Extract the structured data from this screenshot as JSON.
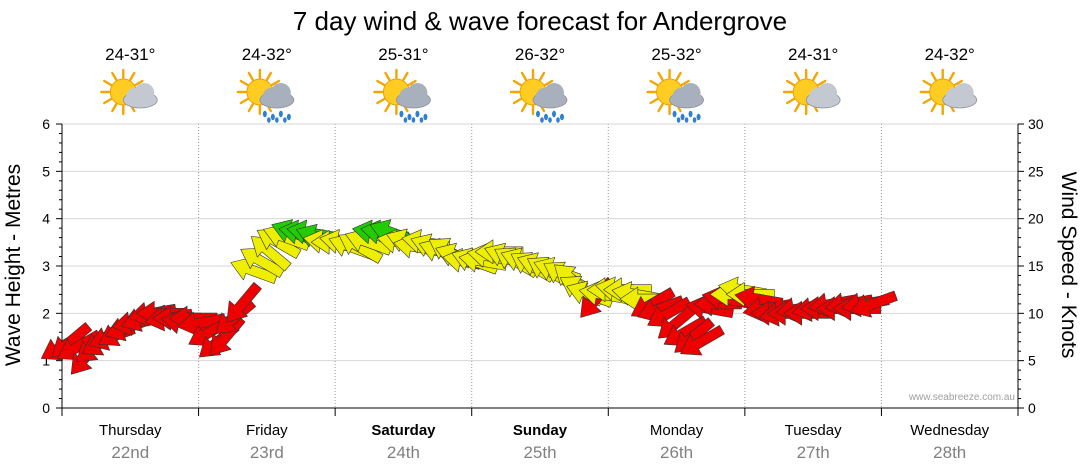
{
  "chart_data": {
    "type": "scatter",
    "title": "7 day wind & wave forecast for Andergrove",
    "ylabel_left": "Wave Height - Metres",
    "ylabel_right": "Wind Speed - Knots",
    "ylim_left": [
      0,
      6
    ],
    "ylim_right": [
      0,
      30
    ],
    "yticks_left": [
      "0",
      "1",
      "2",
      "3",
      "4",
      "5",
      "6"
    ],
    "yticks_right": [
      "0",
      "5",
      "10",
      "15",
      "20",
      "25",
      "30"
    ],
    "credit": "www.seabreeze.com.au",
    "days": [
      {
        "name": "Thursday",
        "date": "22nd",
        "temp": "24-31°",
        "icon": "sun-cloud-icon",
        "bold": false
      },
      {
        "name": "Friday",
        "date": "23rd",
        "temp": "24-32°",
        "icon": "sun-cloud-rain-icon",
        "bold": false
      },
      {
        "name": "Saturday",
        "date": "24th",
        "temp": "25-31°",
        "icon": "sun-cloud-rain-icon",
        "bold": true
      },
      {
        "name": "Sunday",
        "date": "25th",
        "temp": "26-32°",
        "icon": "sun-cloud-rain-icon",
        "bold": true
      },
      {
        "name": "Monday",
        "date": "26th",
        "temp": "25-32°",
        "icon": "sun-cloud-rain-icon",
        "bold": false
      },
      {
        "name": "Tuesday",
        "date": "27th",
        "temp": "24-31°",
        "icon": "sun-cloud-icon",
        "bold": false
      },
      {
        "name": "Wednesday",
        "date": "28th",
        "temp": "24-32°",
        "icon": "sun-cloud-icon",
        "bold": false
      }
    ],
    "colors": {
      "red": "#ee0000",
      "yellow": "#eeee00",
      "green": "#22cc00"
    },
    "wind_series": [
      {
        "t": 0.0,
        "kts": 6.5,
        "dir": 150,
        "c": "red"
      },
      {
        "t": 0.06,
        "kts": 7.0,
        "dir": 140,
        "c": "red"
      },
      {
        "t": 0.12,
        "kts": 6.5,
        "dir": 150,
        "c": "red"
      },
      {
        "t": 0.18,
        "kts": 5.5,
        "dir": 130,
        "c": "red"
      },
      {
        "t": 0.24,
        "kts": 6.5,
        "dir": 140,
        "c": "red"
      },
      {
        "t": 0.3,
        "kts": 7.0,
        "dir": 150,
        "c": "red"
      },
      {
        "t": 0.36,
        "kts": 7.5,
        "dir": 160,
        "c": "red"
      },
      {
        "t": 0.42,
        "kts": 8.0,
        "dir": 150,
        "c": "red"
      },
      {
        "t": 0.48,
        "kts": 8.5,
        "dir": 160,
        "c": "red"
      },
      {
        "t": 0.54,
        "kts": 9.0,
        "dir": 170,
        "c": "red"
      },
      {
        "t": 0.6,
        "kts": 9.5,
        "dir": 160,
        "c": "red"
      },
      {
        "t": 0.66,
        "kts": 10.0,
        "dir": 170,
        "c": "red"
      },
      {
        "t": 0.72,
        "kts": 10.0,
        "dir": 180,
        "c": "red"
      },
      {
        "t": 0.78,
        "kts": 9.5,
        "dir": 170,
        "c": "red"
      },
      {
        "t": 0.84,
        "kts": 9.5,
        "dir": 180,
        "c": "red"
      },
      {
        "t": 0.9,
        "kts": 9.0,
        "dir": 190,
        "c": "red"
      },
      {
        "t": 0.96,
        "kts": 9.5,
        "dir": 180,
        "c": "red"
      },
      {
        "t": 1.02,
        "kts": 9.0,
        "dir": 170,
        "c": "red"
      },
      {
        "t": 1.08,
        "kts": 8.0,
        "dir": 150,
        "c": "red"
      },
      {
        "t": 1.14,
        "kts": 7.0,
        "dir": 140,
        "c": "red"
      },
      {
        "t": 1.2,
        "kts": 7.5,
        "dir": 130,
        "c": "red"
      },
      {
        "t": 1.26,
        "kts": 9.5,
        "dir": 140,
        "c": "red"
      },
      {
        "t": 1.32,
        "kts": 11.0,
        "dir": 130,
        "c": "red"
      },
      {
        "t": 1.4,
        "kts": 14.5,
        "dir": 200,
        "c": "yellow"
      },
      {
        "t": 1.46,
        "kts": 15.5,
        "dir": 210,
        "c": "yellow"
      },
      {
        "t": 1.52,
        "kts": 16.5,
        "dir": 220,
        "c": "yellow"
      },
      {
        "t": 1.58,
        "kts": 17.5,
        "dir": 210,
        "c": "yellow"
      },
      {
        "t": 1.64,
        "kts": 18.0,
        "dir": 200,
        "c": "yellow"
      },
      {
        "t": 1.7,
        "kts": 18.5,
        "dir": 200,
        "c": "green"
      },
      {
        "t": 1.76,
        "kts": 18.5,
        "dir": 190,
        "c": "green"
      },
      {
        "t": 1.82,
        "kts": 18.5,
        "dir": 190,
        "c": "green"
      },
      {
        "t": 1.88,
        "kts": 18.0,
        "dir": 200,
        "c": "green"
      },
      {
        "t": 1.94,
        "kts": 17.5,
        "dir": 190,
        "c": "yellow"
      },
      {
        "t": 2.0,
        "kts": 17.5,
        "dir": 180,
        "c": "yellow"
      },
      {
        "t": 2.06,
        "kts": 17.5,
        "dir": 190,
        "c": "yellow"
      },
      {
        "t": 2.12,
        "kts": 17.0,
        "dir": 200,
        "c": "yellow"
      },
      {
        "t": 2.18,
        "kts": 17.0,
        "dir": 210,
        "c": "yellow"
      },
      {
        "t": 2.24,
        "kts": 17.5,
        "dir": 200,
        "c": "yellow"
      },
      {
        "t": 2.3,
        "kts": 18.5,
        "dir": 190,
        "c": "green"
      },
      {
        "t": 2.36,
        "kts": 18.5,
        "dir": 190,
        "c": "green"
      },
      {
        "t": 2.42,
        "kts": 18.5,
        "dir": 200,
        "c": "green"
      },
      {
        "t": 2.48,
        "kts": 17.5,
        "dir": 190,
        "c": "yellow"
      },
      {
        "t": 2.54,
        "kts": 17.5,
        "dir": 200,
        "c": "yellow"
      },
      {
        "t": 2.6,
        "kts": 17.0,
        "dir": 190,
        "c": "yellow"
      },
      {
        "t": 2.66,
        "kts": 17.5,
        "dir": 190,
        "c": "yellow"
      },
      {
        "t": 2.72,
        "kts": 17.0,
        "dir": 200,
        "c": "yellow"
      },
      {
        "t": 2.78,
        "kts": 16.5,
        "dir": 200,
        "c": "yellow"
      },
      {
        "t": 2.84,
        "kts": 16.5,
        "dir": 210,
        "c": "yellow"
      },
      {
        "t": 2.9,
        "kts": 16.0,
        "dir": 200,
        "c": "yellow"
      },
      {
        "t": 2.96,
        "kts": 15.5,
        "dir": 190,
        "c": "yellow"
      },
      {
        "t": 3.02,
        "kts": 15.5,
        "dir": 200,
        "c": "yellow"
      },
      {
        "t": 3.08,
        "kts": 15.5,
        "dir": 190,
        "c": "yellow"
      },
      {
        "t": 3.14,
        "kts": 16.0,
        "dir": 190,
        "c": "yellow"
      },
      {
        "t": 3.2,
        "kts": 16.5,
        "dir": 180,
        "c": "yellow"
      },
      {
        "t": 3.26,
        "kts": 16.0,
        "dir": 200,
        "c": "yellow"
      },
      {
        "t": 3.32,
        "kts": 15.5,
        "dir": 210,
        "c": "yellow"
      },
      {
        "t": 3.38,
        "kts": 15.5,
        "dir": 200,
        "c": "yellow"
      },
      {
        "t": 3.44,
        "kts": 15.0,
        "dir": 210,
        "c": "yellow"
      },
      {
        "t": 3.5,
        "kts": 15.0,
        "dir": 200,
        "c": "yellow"
      },
      {
        "t": 3.56,
        "kts": 14.5,
        "dir": 210,
        "c": "yellow"
      },
      {
        "t": 3.62,
        "kts": 14.5,
        "dir": 200,
        "c": "yellow"
      },
      {
        "t": 3.68,
        "kts": 14.0,
        "dir": 210,
        "c": "yellow"
      },
      {
        "t": 3.74,
        "kts": 13.5,
        "dir": 220,
        "c": "yellow"
      },
      {
        "t": 3.8,
        "kts": 12.5,
        "dir": 210,
        "c": "yellow"
      },
      {
        "t": 3.86,
        "kts": 12.0,
        "dir": 200,
        "c": "yellow"
      },
      {
        "t": 3.91,
        "kts": 11.5,
        "dir": 130,
        "c": "red"
      },
      {
        "t": 3.96,
        "kts": 12.0,
        "dir": 190,
        "c": "yellow"
      },
      {
        "t": 4.02,
        "kts": 12.5,
        "dir": 180,
        "c": "yellow"
      },
      {
        "t": 4.08,
        "kts": 12.5,
        "dir": 190,
        "c": "yellow"
      },
      {
        "t": 4.14,
        "kts": 12.5,
        "dir": 180,
        "c": "yellow"
      },
      {
        "t": 4.2,
        "kts": 12.0,
        "dir": 190,
        "c": "yellow"
      },
      {
        "t": 4.26,
        "kts": 11.5,
        "dir": 180,
        "c": "yellow"
      },
      {
        "t": 4.32,
        "kts": 11.0,
        "dir": 150,
        "c": "red"
      },
      {
        "t": 4.38,
        "kts": 10.5,
        "dir": 160,
        "c": "red"
      },
      {
        "t": 4.44,
        "kts": 10.0,
        "dir": 150,
        "c": "red"
      },
      {
        "t": 4.5,
        "kts": 9.0,
        "dir": 140,
        "c": "red"
      },
      {
        "t": 4.56,
        "kts": 8.0,
        "dir": 150,
        "c": "red"
      },
      {
        "t": 4.62,
        "kts": 7.5,
        "dir": 140,
        "c": "red"
      },
      {
        "t": 4.68,
        "kts": 7.0,
        "dir": 150,
        "c": "red"
      },
      {
        "t": 4.74,
        "kts": 10.5,
        "dir": 190,
        "c": "red"
      },
      {
        "t": 4.8,
        "kts": 11.0,
        "dir": 180,
        "c": "red"
      },
      {
        "t": 4.86,
        "kts": 11.5,
        "dir": 190,
        "c": "red"
      },
      {
        "t": 4.92,
        "kts": 12.0,
        "dir": 180,
        "c": "yellow"
      },
      {
        "t": 4.98,
        "kts": 12.5,
        "dir": 190,
        "c": "yellow"
      },
      {
        "t": 5.04,
        "kts": 12.0,
        "dir": 180,
        "c": "yellow"
      },
      {
        "t": 5.1,
        "kts": 11.5,
        "dir": 190,
        "c": "red"
      },
      {
        "t": 5.16,
        "kts": 10.5,
        "dir": 170,
        "c": "red"
      },
      {
        "t": 5.22,
        "kts": 10.0,
        "dir": 180,
        "c": "red"
      },
      {
        "t": 5.28,
        "kts": 10.0,
        "dir": 170,
        "c": "red"
      },
      {
        "t": 5.34,
        "kts": 10.0,
        "dir": 180,
        "c": "red"
      },
      {
        "t": 5.4,
        "kts": 10.5,
        "dir": 170,
        "c": "red"
      },
      {
        "t": 5.46,
        "kts": 10.0,
        "dir": 180,
        "c": "red"
      },
      {
        "t": 5.52,
        "kts": 10.5,
        "dir": 170,
        "c": "red"
      },
      {
        "t": 5.58,
        "kts": 10.5,
        "dir": 180,
        "c": "red"
      },
      {
        "t": 5.64,
        "kts": 11.0,
        "dir": 170,
        "c": "red"
      },
      {
        "t": 5.7,
        "kts": 10.5,
        "dir": 180,
        "c": "red"
      },
      {
        "t": 5.76,
        "kts": 11.0,
        "dir": 170,
        "c": "red"
      },
      {
        "t": 5.82,
        "kts": 10.5,
        "dir": 180,
        "c": "red"
      },
      {
        "t": 5.88,
        "kts": 11.0,
        "dir": 170,
        "c": "red"
      },
      {
        "t": 5.94,
        "kts": 11.0,
        "dir": 160,
        "c": "red"
      }
    ]
  }
}
